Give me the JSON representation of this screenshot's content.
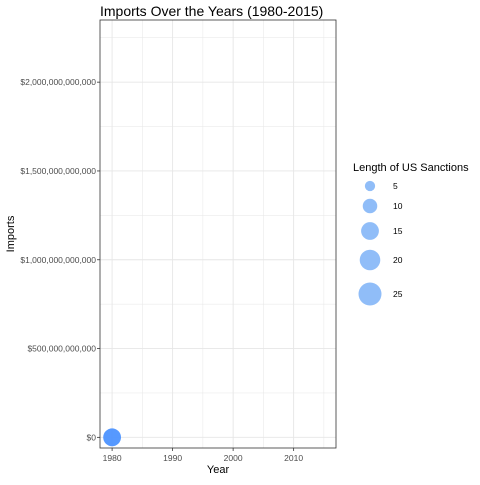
{
  "chart_data": {
    "type": "scatter",
    "title": "Imports Over the Years (1980-2015)",
    "xlabel": "Year",
    "ylabel": "Imports",
    "xlim": [
      1978,
      2017
    ],
    "ylim": [
      -60000000000,
      2350000000000
    ],
    "x_ticks": [
      1980,
      1990,
      2000,
      2010
    ],
    "x_tick_labels": [
      "1980",
      "1990",
      "2000",
      "2010"
    ],
    "y_ticks": [
      0,
      500000000000,
      1000000000000,
      1500000000000,
      2000000000000
    ],
    "y_tick_labels": [
      "$0",
      "$500,000,000,000",
      "$1,000,000,000,000",
      "$1,500,000,000,000",
      "$2,000,000,000,000"
    ],
    "grid": true,
    "points": [
      {
        "x": 1980,
        "y": 0,
        "size": 15
      }
    ],
    "point_color": "#4d94ff",
    "legend": {
      "title": "Length of US Sanctions",
      "placement": "right",
      "entries": [
        {
          "label": "5",
          "value": 5
        },
        {
          "label": "10",
          "value": 10
        },
        {
          "label": "15",
          "value": 15
        },
        {
          "label": "20",
          "value": 20
        },
        {
          "label": "25",
          "value": 25
        }
      ],
      "color": "#8ab9f8"
    }
  }
}
